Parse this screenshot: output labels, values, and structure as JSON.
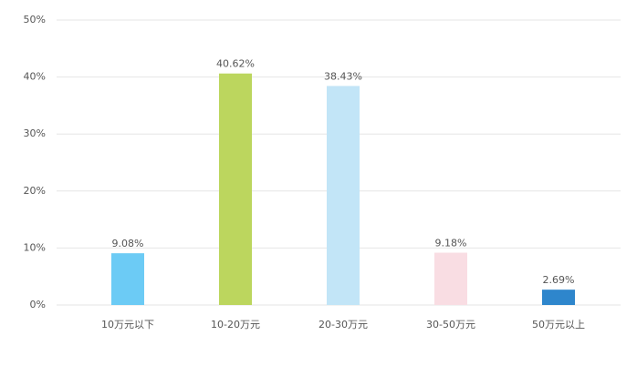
{
  "chart_data": {
    "type": "bar",
    "categories": [
      "10万元以下",
      "10-20万元",
      "20-30万元",
      "30-50万元",
      "50万元以上"
    ],
    "values": [
      9.08,
      40.62,
      38.43,
      9.18,
      2.69
    ],
    "value_labels": [
      "9.08%",
      "40.62%",
      "38.43%",
      "9.18%",
      "2.69%"
    ],
    "colors": [
      "#6ccbf5",
      "#bcd65e",
      "#c2e5f7",
      "#f9dde3",
      "#2e86cc"
    ],
    "ylim": [
      0,
      50
    ],
    "yticks": [
      {
        "value": 0,
        "label": "0%"
      },
      {
        "value": 10,
        "label": "10%"
      },
      {
        "value": 20,
        "label": "20%"
      },
      {
        "value": 30,
        "label": "30%"
      },
      {
        "value": 40,
        "label": "40%"
      },
      {
        "value": 50,
        "label": "50%"
      }
    ],
    "grid": true
  }
}
